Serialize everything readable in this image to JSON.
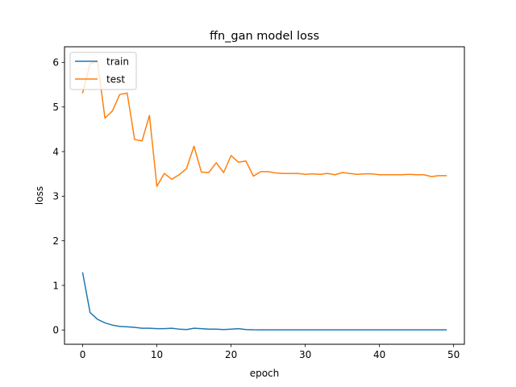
{
  "chart_data": {
    "type": "line",
    "title": "ffn_gan model loss",
    "xlabel": "epoch",
    "ylabel": "loss",
    "xlim": [
      -2.45,
      51.45
    ],
    "ylim": [
      -0.32,
      6.35
    ],
    "xticks": [
      0,
      10,
      20,
      30,
      40,
      50
    ],
    "yticks": [
      0,
      1,
      2,
      3,
      4,
      5,
      6
    ],
    "grid": false,
    "legend": "upper left",
    "x": [
      0,
      1,
      2,
      3,
      4,
      5,
      6,
      7,
      8,
      9,
      10,
      11,
      12,
      13,
      14,
      15,
      16,
      17,
      18,
      19,
      20,
      21,
      22,
      23,
      24,
      25,
      26,
      27,
      28,
      29,
      30,
      31,
      32,
      33,
      34,
      35,
      36,
      37,
      38,
      39,
      40,
      41,
      42,
      43,
      44,
      45,
      46,
      47,
      48,
      49
    ],
    "series": [
      {
        "name": "train",
        "color": "#1f77b4",
        "values": [
          1.28,
          0.39,
          0.24,
          0.16,
          0.11,
          0.08,
          0.07,
          0.06,
          0.04,
          0.04,
          0.03,
          0.03,
          0.04,
          0.02,
          0.01,
          0.04,
          0.03,
          0.02,
          0.02,
          0.01,
          0.02,
          0.03,
          0.01,
          0.005,
          0.004,
          0.004,
          0.003,
          0.003,
          0.003,
          0.003,
          0.003,
          0.003,
          0.003,
          0.003,
          0.003,
          0.003,
          0.003,
          0.003,
          0.003,
          0.003,
          0.003,
          0.003,
          0.003,
          0.003,
          0.003,
          0.003,
          0.003,
          0.003,
          0.003,
          0.003
        ]
      },
      {
        "name": "test",
        "color": "#ff7f0e",
        "values": [
          5.32,
          5.97,
          6.02,
          4.75,
          4.91,
          5.28,
          5.31,
          4.27,
          4.24,
          4.81,
          3.22,
          3.51,
          3.38,
          3.48,
          3.62,
          4.12,
          3.54,
          3.53,
          3.75,
          3.53,
          3.91,
          3.76,
          3.79,
          3.45,
          3.55,
          3.55,
          3.52,
          3.51,
          3.51,
          3.51,
          3.49,
          3.5,
          3.49,
          3.51,
          3.48,
          3.53,
          3.51,
          3.49,
          3.5,
          3.5,
          3.48,
          3.48,
          3.48,
          3.48,
          3.49,
          3.48,
          3.48,
          3.44,
          3.46,
          3.46
        ]
      }
    ]
  }
}
